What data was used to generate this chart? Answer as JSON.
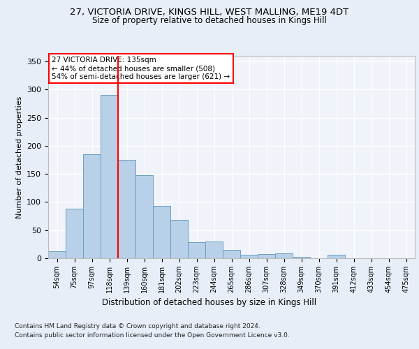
{
  "title1": "27, VICTORIA DRIVE, KINGS HILL, WEST MALLING, ME19 4DT",
  "title2": "Size of property relative to detached houses in Kings Hill",
  "xlabel": "Distribution of detached houses by size in Kings Hill",
  "ylabel": "Number of detached properties",
  "categories": [
    "54sqm",
    "75sqm",
    "97sqm",
    "118sqm",
    "139sqm",
    "160sqm",
    "181sqm",
    "202sqm",
    "223sqm",
    "244sqm",
    "265sqm",
    "286sqm",
    "307sqm",
    "328sqm",
    "349sqm",
    "370sqm",
    "391sqm",
    "412sqm",
    "433sqm",
    "454sqm",
    "475sqm"
  ],
  "values": [
    13,
    88,
    185,
    290,
    175,
    148,
    93,
    68,
    28,
    30,
    15,
    6,
    8,
    9,
    3,
    0,
    6,
    0,
    0,
    0,
    0
  ],
  "bar_color": "#b8d0e8",
  "bar_edge_color": "#6a9ec0",
  "vline_color": "red",
  "annotation_text": "27 VICTORIA DRIVE: 135sqm\n← 44% of detached houses are smaller (508)\n54% of semi-detached houses are larger (621) →",
  "annotation_box_color": "white",
  "annotation_box_edge": "red",
  "ylim": [
    0,
    360
  ],
  "yticks": [
    0,
    50,
    100,
    150,
    200,
    250,
    300,
    350
  ],
  "footer1": "Contains HM Land Registry data © Crown copyright and database right 2024.",
  "footer2": "Contains public sector information licensed under the Open Government Licence v3.0.",
  "bg_color": "#e8eef8",
  "plot_bg_color": "#f0f4fa"
}
